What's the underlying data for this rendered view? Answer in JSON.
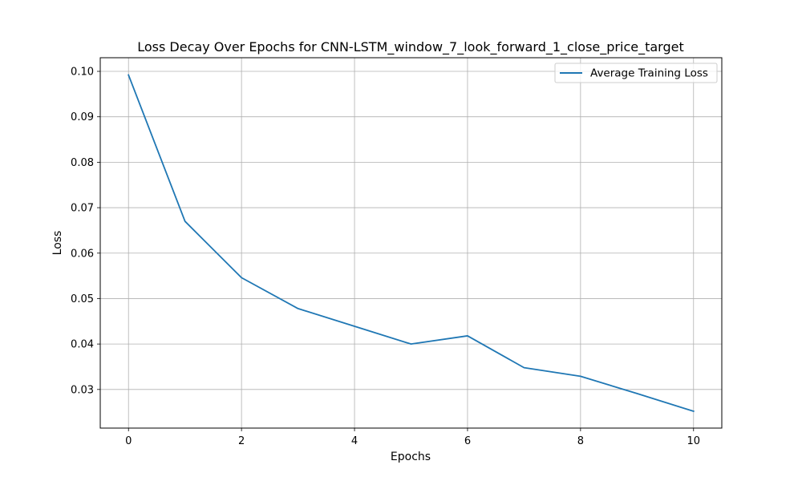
{
  "chart_data": {
    "type": "line",
    "title": "Loss Decay Over Epochs for CNN-LSTM_window_7_look_forward_1_close_price_target",
    "xlabel": "Epochs",
    "ylabel": "Loss",
    "xlim": [
      -0.5,
      10.5
    ],
    "ylim": [
      0.0215,
      0.103
    ],
    "xticks": [
      0,
      2,
      4,
      6,
      8,
      10
    ],
    "xtick_labels": [
      "0",
      "2",
      "4",
      "6",
      "8",
      "10"
    ],
    "yticks": [
      0.03,
      0.04,
      0.05,
      0.06,
      0.07,
      0.08,
      0.09,
      0.1
    ],
    "ytick_labels": [
      "0.03",
      "0.04",
      "0.05",
      "0.06",
      "0.07",
      "0.08",
      "0.09",
      "0.10"
    ],
    "grid": true,
    "legend_position": "top-right",
    "x": [
      0,
      1,
      2,
      3,
      4,
      5,
      6,
      7,
      8,
      9,
      10
    ],
    "series": [
      {
        "name": "Average Training Loss",
        "color": "#1f77b4",
        "values": [
          0.0992,
          0.067,
          0.0546,
          0.0478,
          0.0439,
          0.04,
          0.0418,
          0.0348,
          0.0329,
          0.0291,
          0.0252
        ]
      }
    ]
  }
}
